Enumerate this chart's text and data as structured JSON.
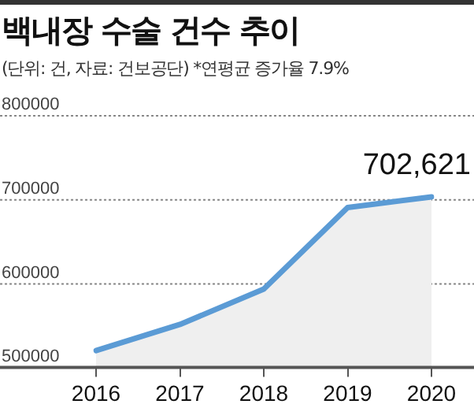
{
  "chart_data": {
    "type": "area",
    "title": "백내장 수술 건수 추이",
    "subtitle": "(단위: 건, 자료: 건보공단) *연평균 증가율 7.9%",
    "categories": [
      "2016",
      "2017",
      "2018",
      "2019",
      "2020"
    ],
    "series": [
      {
        "color": "#5b9bd5",
        "values": [
          520000,
          551000,
          593000,
          690000,
          702621
        ],
        "value_labels": [
          null,
          null,
          null,
          null,
          "702,621"
        ]
      }
    ],
    "ylim": [
      500000,
      800000
    ],
    "yticks": [
      500000,
      600000,
      700000,
      800000
    ],
    "grid": "y",
    "marker": "none"
  }
}
